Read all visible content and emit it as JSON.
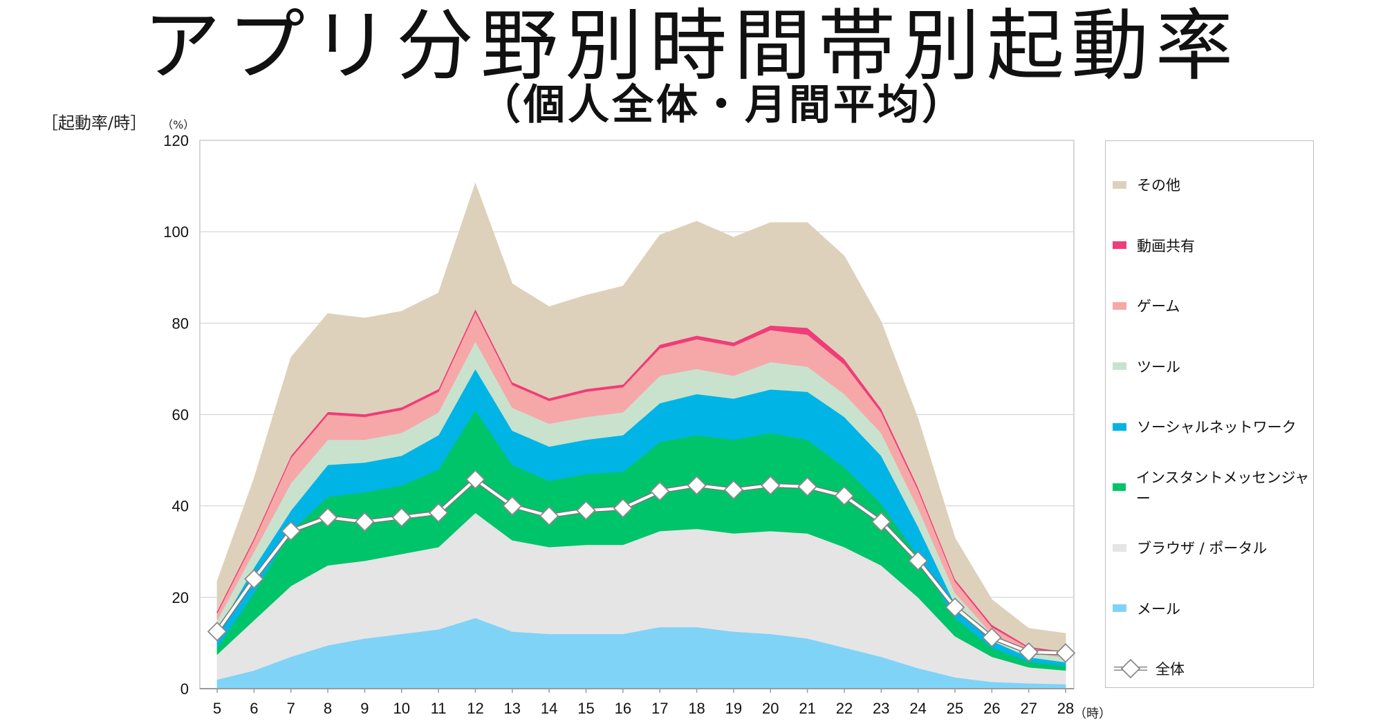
{
  "title": "アプリ分野別時間帯別起動率",
  "subtitle": "（個人全体・月間平均）",
  "y_unit_label": "［起動率/時］",
  "y_unit_pct": "（%）",
  "x_unit_label": "（時）",
  "chart_data": {
    "type": "area",
    "stacked": true,
    "title": "アプリ分野別時間帯別起動率",
    "subtitle": "（個人全体・月間平均）",
    "xlabel": "（時）",
    "ylabel": "［起動率/時］（%）",
    "ylim": [
      0,
      120
    ],
    "yticks": [
      0,
      20,
      40,
      60,
      80,
      100,
      120
    ],
    "grid": true,
    "legend_position": "right",
    "categories": [
      5,
      6,
      7,
      8,
      9,
      10,
      11,
      12,
      13,
      14,
      15,
      16,
      17,
      18,
      19,
      20,
      21,
      22,
      23,
      24,
      25,
      26,
      27,
      28
    ],
    "series": [
      {
        "name": "メール",
        "color": "#7fd3f7",
        "values": [
          2,
          4,
          7,
          9.5,
          11,
          12,
          13,
          15.5,
          12.5,
          12,
          12,
          12,
          13.5,
          13.5,
          12.5,
          12,
          11,
          9,
          7,
          4.5,
          2.5,
          1.5,
          1.2,
          1
        ]
      },
      {
        "name": "ブラウザ / ポータル",
        "color": "#e5e5e5",
        "values": [
          5.5,
          11,
          15.5,
          17.5,
          17,
          17.5,
          18,
          23,
          20,
          19,
          19.5,
          19.5,
          21,
          21.5,
          21.5,
          22.5,
          23,
          22,
          20,
          15.5,
          9,
          5.5,
          3.5,
          3
        ]
      },
      {
        "name": "インスタントメッセンジャー",
        "color": "#00c46a",
        "values": [
          1.5,
          6,
          12,
          15,
          15,
          15,
          17,
          22.5,
          16.5,
          14.5,
          15.5,
          16,
          19.5,
          20.5,
          20.5,
          21.5,
          20.5,
          17.5,
          13.5,
          9,
          4,
          2,
          1.2,
          1
        ]
      },
      {
        "name": "ソーシャルネットワーク",
        "color": "#00b4e6",
        "values": [
          3.5,
          5.5,
          4.5,
          7,
          6.5,
          6.5,
          7.5,
          9,
          7.5,
          7.5,
          7.5,
          8,
          8.5,
          9,
          9,
          9.5,
          10.5,
          11,
          10.5,
          6.5,
          3,
          1.5,
          1,
          0.8
        ]
      },
      {
        "name": "ツール",
        "color": "#c9e2cd",
        "values": [
          2.5,
          3.5,
          6,
          5.5,
          5,
          5,
          5,
          6,
          5,
          5,
          5,
          5,
          6,
          5.5,
          5,
          6,
          5.5,
          5,
          5,
          4,
          2.5,
          1.5,
          1,
          1
        ]
      },
      {
        "name": "ゲーム",
        "color": "#f6a8a8",
        "values": [
          1.5,
          2.5,
          5.5,
          5.5,
          5,
          5,
          4.5,
          6.5,
          5,
          5,
          5.5,
          5.5,
          6,
          6.5,
          6.5,
          7,
          7,
          6.5,
          4.5,
          4,
          2.5,
          1.5,
          1,
          1
        ]
      },
      {
        "name": "動画共有",
        "color": "#f03c78",
        "values": [
          0.5,
          0.5,
          0.5,
          0.6,
          0.6,
          0.6,
          0.6,
          0.6,
          0.6,
          0.6,
          0.6,
          0.6,
          0.8,
          0.8,
          0.8,
          1,
          1.5,
          1.2,
          0.8,
          0.6,
          0.5,
          0.5,
          0.3,
          0.3
        ]
      },
      {
        "name": "その他",
        "color": "#ddd1bb",
        "values": [
          6.5,
          13,
          21.5,
          21.5,
          21,
          21,
          21,
          27.5,
          21.5,
          20,
          20.5,
          21.5,
          24,
          25,
          23,
          22.5,
          23,
          22.5,
          19,
          15,
          9,
          5.5,
          4,
          4
        ]
      }
    ],
    "overlay_series": {
      "name": "全体",
      "color": "#ffffff",
      "values": [
        12.5,
        24,
        34.5,
        37.5,
        36.5,
        37.5,
        38.5,
        45.8,
        40,
        37.8,
        39,
        39.5,
        43.2,
        44.5,
        43.5,
        44.5,
        44.2,
        42.2,
        36.5,
        28,
        17.8,
        11.2,
        8,
        7.8
      ]
    }
  },
  "legend": {
    "items": [
      {
        "label": "その他",
        "color": "#ddd1bb"
      },
      {
        "label": "動画共有",
        "color": "#f03c78"
      },
      {
        "label": "ゲーム",
        "color": "#f6a8a8"
      },
      {
        "label": "ツール",
        "color": "#c9e2cd"
      },
      {
        "label": "ソーシャルネットワーク",
        "color": "#00b4e6"
      },
      {
        "label": "インスタントメッセンジャー",
        "color": "#00c46a"
      },
      {
        "label": "ブラウザ / ポータル",
        "color": "#e5e5e5"
      },
      {
        "label": "メール",
        "color": "#7fd3f7"
      },
      {
        "label": "全体",
        "marker": "diamond-line"
      }
    ]
  }
}
